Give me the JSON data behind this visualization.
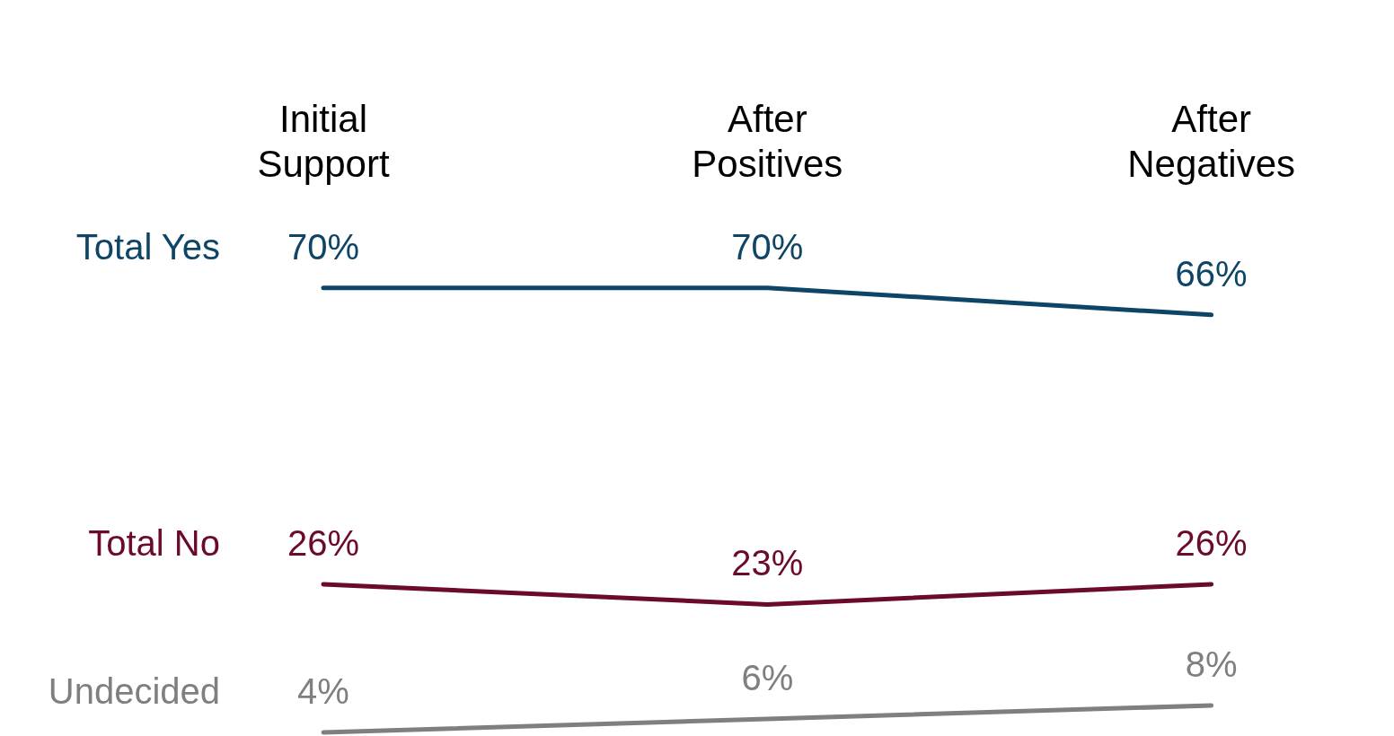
{
  "chart_data": {
    "type": "line",
    "categories": [
      "Initial Support",
      "After Positives",
      "After Negatives"
    ],
    "series": [
      {
        "name": "Total Yes",
        "color": "#0e4466",
        "values": [
          70,
          70,
          66
        ],
        "value_labels": [
          "70%",
          "70%",
          "66%"
        ]
      },
      {
        "name": "Total No",
        "color": "#6b0a2a",
        "values": [
          26,
          23,
          26
        ],
        "value_labels": [
          "26%",
          "23%",
          "26%"
        ]
      },
      {
        "name": "Undecided",
        "color": "#7f7f7f",
        "values": [
          4,
          6,
          8
        ],
        "value_labels": [
          "4%",
          "6%",
          "8%"
        ]
      }
    ],
    "grid": false,
    "legend": false,
    "tick_labels": "x",
    "marker": "none",
    "line_style": "solid"
  }
}
